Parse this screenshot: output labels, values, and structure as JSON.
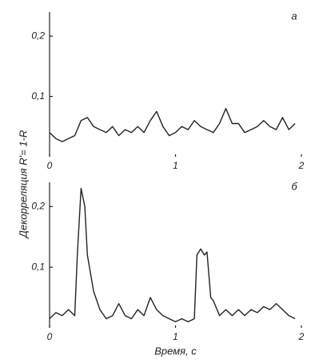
{
  "chart_data": [
    {
      "type": "line",
      "panel_label": "а",
      "ylabel": "Декорреляция R'= 1-R",
      "x": [
        0,
        0.05,
        0.1,
        0.15,
        0.2,
        0.25,
        0.3,
        0.35,
        0.4,
        0.45,
        0.5,
        0.55,
        0.6,
        0.65,
        0.7,
        0.75,
        0.8,
        0.85,
        0.9,
        0.95,
        1.0,
        1.05,
        1.1,
        1.15,
        1.2,
        1.25,
        1.3,
        1.35,
        1.4,
        1.45,
        1.5,
        1.55,
        1.6,
        1.65,
        1.7,
        1.75,
        1.8,
        1.85,
        1.9,
        1.95
      ],
      "values": [
        0.04,
        0.03,
        0.025,
        0.03,
        0.035,
        0.06,
        0.065,
        0.05,
        0.045,
        0.04,
        0.05,
        0.035,
        0.045,
        0.04,
        0.05,
        0.04,
        0.06,
        0.075,
        0.05,
        0.035,
        0.04,
        0.05,
        0.045,
        0.06,
        0.05,
        0.045,
        0.04,
        0.055,
        0.08,
        0.055,
        0.055,
        0.04,
        0.045,
        0.05,
        0.06,
        0.05,
        0.045,
        0.065,
        0.045,
        0.055
      ],
      "color": "#222222",
      "xlim": [
        0,
        2
      ],
      "xticks": [
        0,
        1,
        2
      ],
      "ylim": [
        0,
        0.24
      ],
      "yticks": [
        {
          "value": 0.1,
          "label": "0,1"
        },
        {
          "value": 0.2,
          "label": "0,2"
        }
      ]
    },
    {
      "type": "line",
      "panel_label": "б",
      "xlabel": "Время, с",
      "x": [
        0,
        0.05,
        0.1,
        0.15,
        0.2,
        0.22,
        0.25,
        0.28,
        0.3,
        0.35,
        0.4,
        0.45,
        0.5,
        0.55,
        0.6,
        0.65,
        0.7,
        0.75,
        0.8,
        0.85,
        0.9,
        0.95,
        1.0,
        1.05,
        1.1,
        1.15,
        1.17,
        1.2,
        1.23,
        1.25,
        1.28,
        1.3,
        1.35,
        1.4,
        1.45,
        1.5,
        1.55,
        1.6,
        1.65,
        1.7,
        1.75,
        1.8,
        1.85,
        1.9,
        1.95
      ],
      "values": [
        0.015,
        0.025,
        0.02,
        0.03,
        0.02,
        0.12,
        0.23,
        0.2,
        0.12,
        0.06,
        0.03,
        0.015,
        0.02,
        0.04,
        0.02,
        0.015,
        0.03,
        0.02,
        0.05,
        0.03,
        0.02,
        0.015,
        0.01,
        0.015,
        0.01,
        0.015,
        0.12,
        0.13,
        0.12,
        0.125,
        0.05,
        0.045,
        0.02,
        0.03,
        0.02,
        0.03,
        0.02,
        0.03,
        0.025,
        0.035,
        0.03,
        0.04,
        0.03,
        0.02,
        0.015
      ],
      "color": "#222222",
      "xlim": [
        0,
        2
      ],
      "xticks": [
        0,
        1,
        2
      ],
      "ylim": [
        0,
        0.24
      ],
      "yticks": [
        {
          "value": 0.1,
          "label": "0,1"
        },
        {
          "value": 0.2,
          "label": "0,2"
        }
      ]
    }
  ]
}
